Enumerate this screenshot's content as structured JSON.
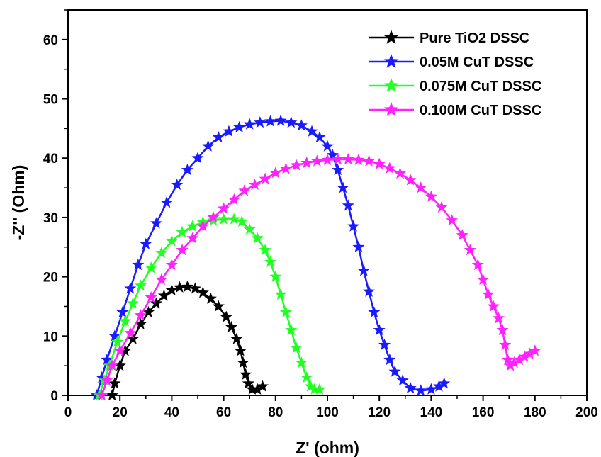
{
  "chart_data": {
    "type": "scatter",
    "xlabel": "Z' (ohm)",
    "ylabel": "-Z'' (Ohm)",
    "xlim": [
      0,
      200
    ],
    "ylim": [
      0,
      65
    ],
    "xticks": [
      "0",
      "20",
      "40",
      "60",
      "80",
      "100",
      "120",
      "140",
      "160",
      "180",
      "200"
    ],
    "yticks": [
      "0",
      "10",
      "20",
      "30",
      "40",
      "50",
      "60"
    ],
    "grid": false,
    "legend_position": "top-right",
    "marker": "star",
    "series": [
      {
        "name": "Pure TiO2 DSSC",
        "color": "#000000",
        "points": [
          [
            17,
            0
          ],
          [
            18,
            2
          ],
          [
            20,
            5
          ],
          [
            22,
            7.5
          ],
          [
            25,
            9.5
          ],
          [
            28,
            12
          ],
          [
            31,
            14
          ],
          [
            34,
            15.5
          ],
          [
            37,
            16.8
          ],
          [
            40,
            17.7
          ],
          [
            43,
            18.2
          ],
          [
            46,
            18.3
          ],
          [
            49,
            18
          ],
          [
            52,
            17.3
          ],
          [
            55,
            16.3
          ],
          [
            58,
            15
          ],
          [
            61,
            13.2
          ],
          [
            63,
            11.5
          ],
          [
            65,
            9.5
          ],
          [
            66.5,
            7.5
          ],
          [
            67.5,
            5.5
          ],
          [
            68.5,
            3.5
          ],
          [
            69.5,
            2
          ],
          [
            71,
            1
          ],
          [
            73,
            1
          ],
          [
            75,
            1.5
          ]
        ]
      },
      {
        "name": "0.05M CuT DSSC",
        "color": "#1a1aff",
        "points": [
          [
            11,
            0
          ],
          [
            13,
            3
          ],
          [
            15,
            6
          ],
          [
            18,
            10
          ],
          [
            21,
            14
          ],
          [
            24,
            18
          ],
          [
            27,
            22
          ],
          [
            30,
            25.5
          ],
          [
            34,
            29
          ],
          [
            38,
            32.5
          ],
          [
            42,
            35.5
          ],
          [
            46,
            38
          ],
          [
            50,
            40
          ],
          [
            54,
            42
          ],
          [
            58,
            43.5
          ],
          [
            62,
            44.5
          ],
          [
            66,
            45.2
          ],
          [
            70,
            45.7
          ],
          [
            74,
            46
          ],
          [
            78,
            46.2
          ],
          [
            82,
            46.3
          ],
          [
            86,
            46
          ],
          [
            90,
            45.5
          ],
          [
            94,
            44.5
          ],
          [
            97,
            43.5
          ],
          [
            100,
            42
          ],
          [
            102,
            40.5
          ],
          [
            104,
            38
          ],
          [
            106,
            35
          ],
          [
            108,
            32
          ],
          [
            110,
            28.5
          ],
          [
            112,
            25
          ],
          [
            114,
            21
          ],
          [
            116,
            17.5
          ],
          [
            118,
            14
          ],
          [
            120,
            11
          ],
          [
            122,
            8.5
          ],
          [
            124,
            6
          ],
          [
            126,
            4
          ],
          [
            129,
            2.5
          ],
          [
            132,
            1.2
          ],
          [
            136,
            0.8
          ],
          [
            140,
            1
          ],
          [
            143,
            1.5
          ],
          [
            145,
            2
          ]
        ]
      },
      {
        "name": "0.075M CuT DSSC",
        "color": "#22ff22",
        "points": [
          [
            12,
            0
          ],
          [
            14,
            2.5
          ],
          [
            16,
            5
          ],
          [
            19,
            9
          ],
          [
            22,
            12.5
          ],
          [
            25,
            15.5
          ],
          [
            28,
            18.5
          ],
          [
            32,
            21.5
          ],
          [
            36,
            24
          ],
          [
            40,
            26
          ],
          [
            44,
            27.5
          ],
          [
            48,
            28.5
          ],
          [
            52,
            29.2
          ],
          [
            56,
            29.5
          ],
          [
            60,
            29.7
          ],
          [
            64,
            29.7
          ],
          [
            67,
            29.3
          ],
          [
            70,
            28
          ],
          [
            73,
            26.5
          ],
          [
            76,
            24.5
          ],
          [
            78,
            22.5
          ],
          [
            80,
            20
          ],
          [
            82,
            17
          ],
          [
            84,
            14
          ],
          [
            86,
            11
          ],
          [
            88,
            8
          ],
          [
            90,
            5.5
          ],
          [
            92,
            3
          ],
          [
            93.5,
            1.5
          ],
          [
            95,
            1
          ],
          [
            97,
            1
          ]
        ]
      },
      {
        "name": "0.100M CuT DSSC",
        "color": "#ff22ff",
        "points": [
          [
            13,
            0
          ],
          [
            15,
            2.5
          ],
          [
            17,
            5
          ],
          [
            20,
            7.5
          ],
          [
            24,
            10.5
          ],
          [
            28,
            13.5
          ],
          [
            32,
            16.5
          ],
          [
            36,
            19.5
          ],
          [
            40,
            22
          ],
          [
            44,
            24.5
          ],
          [
            48,
            26.5
          ],
          [
            52,
            28.5
          ],
          [
            56,
            30
          ],
          [
            60,
            31.5
          ],
          [
            64,
            33
          ],
          [
            68,
            34.5
          ],
          [
            72,
            35.5
          ],
          [
            76,
            36.5
          ],
          [
            80,
            37.5
          ],
          [
            84,
            38.2
          ],
          [
            88,
            38.8
          ],
          [
            92,
            39.2
          ],
          [
            96,
            39.5
          ],
          [
            100,
            39.7
          ],
          [
            104,
            39.8
          ],
          [
            108,
            39.8
          ],
          [
            112,
            39.7
          ],
          [
            116,
            39.5
          ],
          [
            120,
            39
          ],
          [
            124,
            38.3
          ],
          [
            128,
            37.4
          ],
          [
            132,
            36.3
          ],
          [
            136,
            35
          ],
          [
            140,
            33.5
          ],
          [
            144,
            31.7
          ],
          [
            148,
            29.5
          ],
          [
            152,
            27
          ],
          [
            155,
            24.5
          ],
          [
            158,
            22
          ],
          [
            160,
            19.5
          ],
          [
            162,
            17
          ],
          [
            164,
            15
          ],
          [
            166,
            13
          ],
          [
            167.5,
            11
          ],
          [
            168.5,
            8.5
          ],
          [
            169.5,
            6
          ],
          [
            170.5,
            5
          ],
          [
            172,
            5.5
          ],
          [
            174,
            6
          ],
          [
            176,
            6.5
          ],
          [
            178,
            7
          ],
          [
            180,
            7.5
          ]
        ]
      }
    ]
  }
}
